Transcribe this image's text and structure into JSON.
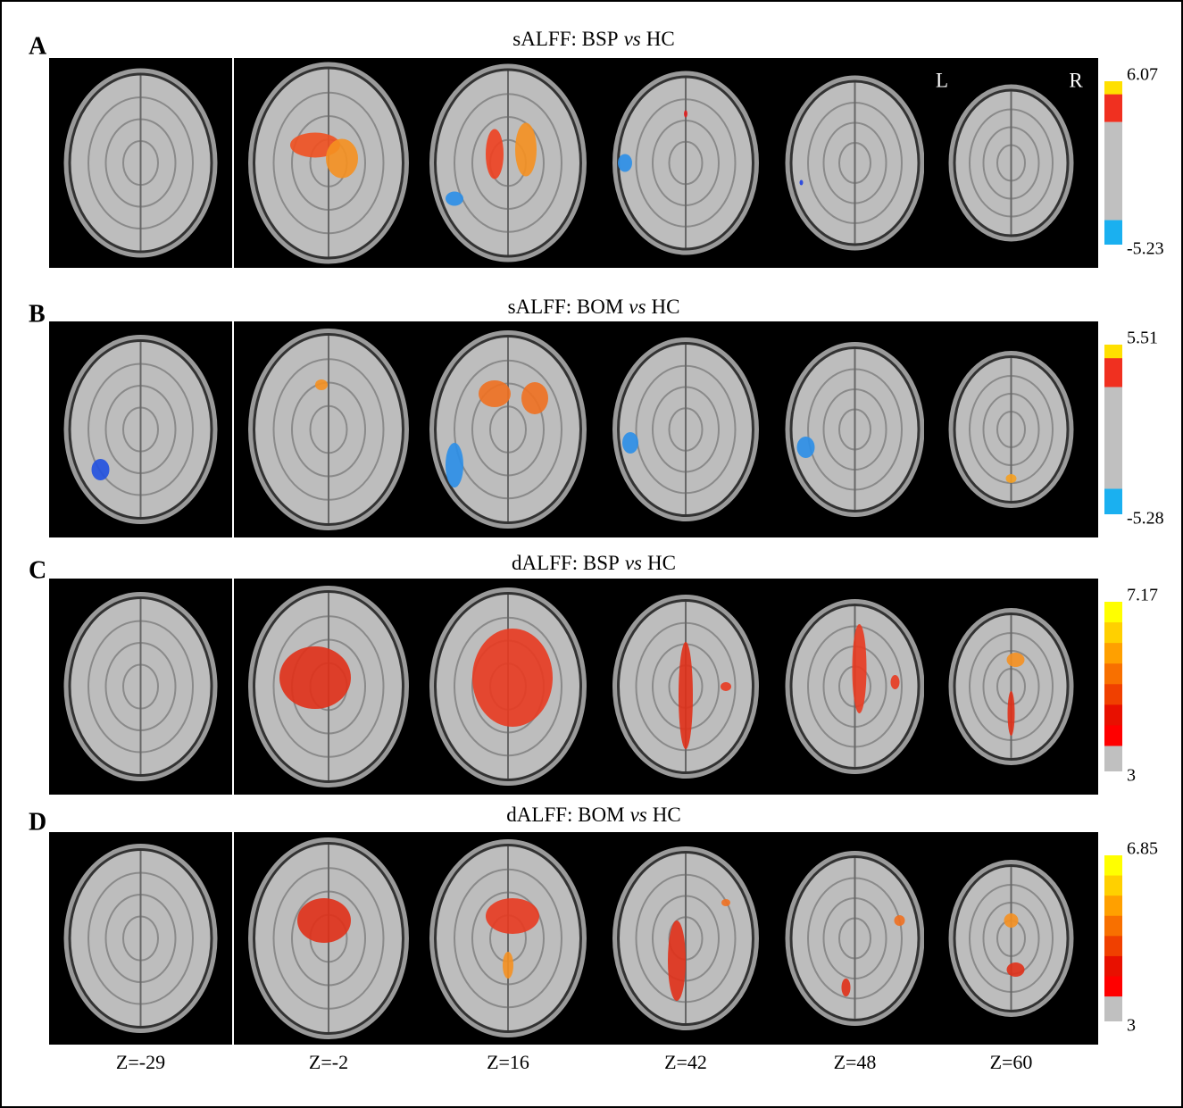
{
  "panels": [
    {
      "letter": "A",
      "title": [
        "sALFF: BSP",
        "vs",
        "HC"
      ],
      "max": 6.07,
      "min": -5.23
    },
    {
      "letter": "B",
      "title": [
        "sALFF: BOM",
        "vs",
        "HC"
      ],
      "max": 5.51,
      "min": -5.28
    },
    {
      "letter": "C",
      "title": [
        "dALFF: BSP",
        "vs",
        "HC"
      ],
      "max": 7.17,
      "min": 3
    },
    {
      "letter": "D",
      "title": [
        "dALFF: BOM",
        "vs",
        "HC"
      ],
      "max": 6.85,
      "min": 3
    }
  ],
  "orientation": [
    "L",
    "R"
  ],
  "slices": [
    "Z=-29",
    "Z=-2",
    "Z=16",
    "Z=42",
    "Z=48",
    "Z=60"
  ]
}
